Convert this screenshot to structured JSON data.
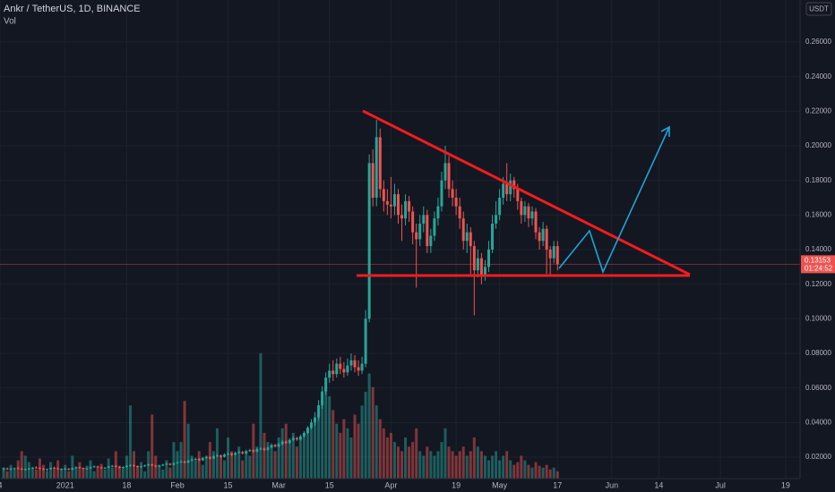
{
  "chart_data": {
    "type": "candlestick",
    "title": "Ankr / TetherUS, 1D, BINANCE",
    "volume_label": "Vol",
    "currency": "USDT",
    "countdown": "01:24:52",
    "up_color": "#26a69a",
    "down_color": "#ef5350",
    "grid": true,
    "ylim": [
      0.0076,
      0.2843
    ],
    "yticks": [
      {
        "value": 0.02,
        "label": "0.02000"
      },
      {
        "value": 0.04,
        "label": "0.04000"
      },
      {
        "value": 0.06,
        "label": "0.06000"
      },
      {
        "value": 0.08,
        "label": "0.08000"
      },
      {
        "value": 0.1,
        "label": "0.10000"
      },
      {
        "value": 0.12,
        "label": "0.12000"
      },
      {
        "value": 0.14,
        "label": "0.14000"
      },
      {
        "value": 0.16,
        "label": "0.16000"
      },
      {
        "value": 0.18,
        "label": "0.18000"
      },
      {
        "value": 0.2,
        "label": "0.20000"
      },
      {
        "value": 0.22,
        "label": "0.22000"
      },
      {
        "value": 0.24,
        "label": "0.24000"
      },
      {
        "value": 0.26,
        "label": "0.26000"
      }
    ],
    "xlim": [
      "2020-12-14",
      "2021-07-23"
    ],
    "xticks": [
      {
        "value": "2020-12-14",
        "label": "4"
      },
      {
        "value": "2021-01-01",
        "label": "2021"
      },
      {
        "value": "2021-01-18",
        "label": "18"
      },
      {
        "value": "2021-02-01",
        "label": "Feb"
      },
      {
        "value": "2021-02-15",
        "label": "15"
      },
      {
        "value": "2021-03-01",
        "label": "Mar"
      },
      {
        "value": "2021-03-15",
        "label": "15"
      },
      {
        "value": "2021-04-01",
        "label": "Apr"
      },
      {
        "value": "2021-04-19",
        "label": "19"
      },
      {
        "value": "2021-05-01",
        "label": "May"
      },
      {
        "value": "2021-05-17",
        "label": "17"
      },
      {
        "value": "2021-06-01",
        "label": "Jun"
      },
      {
        "value": "2021-06-14",
        "label": "14"
      },
      {
        "value": "2021-07-01",
        "label": "Jul"
      },
      {
        "value": "2021-07-19",
        "label": "19"
      }
    ],
    "x": [
      "2020-12-15",
      "2020-12-16",
      "2020-12-17",
      "2020-12-18",
      "2020-12-19",
      "2020-12-20",
      "2020-12-21",
      "2020-12-22",
      "2020-12-23",
      "2020-12-24",
      "2020-12-25",
      "2020-12-26",
      "2020-12-27",
      "2020-12-28",
      "2020-12-29",
      "2020-12-30",
      "2020-12-31",
      "2021-01-01",
      "2021-01-02",
      "2021-01-03",
      "2021-01-04",
      "2021-01-05",
      "2021-01-06",
      "2021-01-07",
      "2021-01-08",
      "2021-01-09",
      "2021-01-10",
      "2021-01-11",
      "2021-01-12",
      "2021-01-13",
      "2021-01-14",
      "2021-01-15",
      "2021-01-16",
      "2021-01-17",
      "2021-01-18",
      "2021-01-19",
      "2021-01-20",
      "2021-01-21",
      "2021-01-22",
      "2021-01-23",
      "2021-01-24",
      "2021-01-25",
      "2021-01-26",
      "2021-01-27",
      "2021-01-28",
      "2021-01-29",
      "2021-01-30",
      "2021-01-31",
      "2021-02-01",
      "2021-02-02",
      "2021-02-03",
      "2021-02-04",
      "2021-02-05",
      "2021-02-06",
      "2021-02-07",
      "2021-02-08",
      "2021-02-09",
      "2021-02-10",
      "2021-02-11",
      "2021-02-12",
      "2021-02-13",
      "2021-02-14",
      "2021-02-15",
      "2021-02-16",
      "2021-02-17",
      "2021-02-18",
      "2021-02-19",
      "2021-02-20",
      "2021-02-21",
      "2021-02-22",
      "2021-02-23",
      "2021-02-24",
      "2021-02-25",
      "2021-02-26",
      "2021-02-27",
      "2021-02-28",
      "2021-03-01",
      "2021-03-02",
      "2021-03-03",
      "2021-03-04",
      "2021-03-05",
      "2021-03-06",
      "2021-03-07",
      "2021-03-08",
      "2021-03-09",
      "2021-03-10",
      "2021-03-11",
      "2021-03-12",
      "2021-03-13",
      "2021-03-14",
      "2021-03-15",
      "2021-03-16",
      "2021-03-17",
      "2021-03-18",
      "2021-03-19",
      "2021-03-20",
      "2021-03-21",
      "2021-03-22",
      "2021-03-23",
      "2021-03-24",
      "2021-03-25",
      "2021-03-26",
      "2021-03-27",
      "2021-03-28",
      "2021-03-29",
      "2021-03-30",
      "2021-03-31",
      "2021-04-01",
      "2021-04-02",
      "2021-04-03",
      "2021-04-04",
      "2021-04-05",
      "2021-04-06",
      "2021-04-07",
      "2021-04-08",
      "2021-04-09",
      "2021-04-10",
      "2021-04-11",
      "2021-04-12",
      "2021-04-13",
      "2021-04-14",
      "2021-04-15",
      "2021-04-16",
      "2021-04-17",
      "2021-04-18",
      "2021-04-19",
      "2021-04-20",
      "2021-04-21",
      "2021-04-22",
      "2021-04-23",
      "2021-04-24",
      "2021-04-25",
      "2021-04-26",
      "2021-04-27",
      "2021-04-28",
      "2021-04-29",
      "2021-04-30",
      "2021-05-01",
      "2021-05-02",
      "2021-05-03",
      "2021-05-04",
      "2021-05-05",
      "2021-05-06",
      "2021-05-07",
      "2021-05-08",
      "2021-05-09",
      "2021-05-10",
      "2021-05-11",
      "2021-05-12",
      "2021-05-13",
      "2021-05-14",
      "2021-05-15",
      "2021-05-16",
      "2021-05-17"
    ],
    "candles": [
      [
        0.013,
        0.014,
        0.012,
        0.0135
      ],
      [
        0.0135,
        0.014,
        0.0125,
        0.013
      ],
      [
        0.013,
        0.0138,
        0.0125,
        0.0132
      ],
      [
        0.0132,
        0.014,
        0.0128,
        0.0136
      ],
      [
        0.0136,
        0.0145,
        0.013,
        0.0133
      ],
      [
        0.0133,
        0.014,
        0.0126,
        0.0129
      ],
      [
        0.0129,
        0.0135,
        0.0122,
        0.0131
      ],
      [
        0.0131,
        0.0138,
        0.0127,
        0.0134
      ],
      [
        0.0134,
        0.0142,
        0.013,
        0.014
      ],
      [
        0.014,
        0.0148,
        0.0134,
        0.0137
      ],
      [
        0.0137,
        0.0142,
        0.013,
        0.0132
      ],
      [
        0.0132,
        0.0138,
        0.0125,
        0.0128
      ],
      [
        0.0128,
        0.0134,
        0.012,
        0.0131
      ],
      [
        0.0131,
        0.014,
        0.0128,
        0.0138
      ],
      [
        0.0138,
        0.0146,
        0.0133,
        0.0135
      ],
      [
        0.0135,
        0.014,
        0.0128,
        0.013
      ],
      [
        0.013,
        0.0136,
        0.0124,
        0.0133
      ],
      [
        0.0133,
        0.0139,
        0.0128,
        0.0133
      ],
      [
        0.0133,
        0.0137,
        0.0123,
        0.0128
      ],
      [
        0.0128,
        0.014,
        0.0124,
        0.0136
      ],
      [
        0.0136,
        0.0147,
        0.0132,
        0.0142
      ],
      [
        0.0142,
        0.0146,
        0.0133,
        0.0138
      ],
      [
        0.0138,
        0.014,
        0.0126,
        0.0131
      ],
      [
        0.0131,
        0.0139,
        0.0127,
        0.0135
      ],
      [
        0.0135,
        0.0146,
        0.0131,
        0.0142
      ],
      [
        0.0142,
        0.0152,
        0.0138,
        0.0147
      ],
      [
        0.0147,
        0.015,
        0.0137,
        0.0141
      ],
      [
        0.0141,
        0.0145,
        0.0131,
        0.0136
      ],
      [
        0.0136,
        0.0143,
        0.0132,
        0.0139
      ],
      [
        0.0139,
        0.015,
        0.0135,
        0.0146
      ],
      [
        0.0146,
        0.0155,
        0.0142,
        0.015
      ],
      [
        0.015,
        0.0154,
        0.014,
        0.0144
      ],
      [
        0.0144,
        0.0148,
        0.0134,
        0.0139
      ],
      [
        0.0139,
        0.0147,
        0.0135,
        0.0143
      ],
      [
        0.0143,
        0.0153,
        0.0139,
        0.0149
      ],
      [
        0.0149,
        0.0159,
        0.0145,
        0.0154
      ],
      [
        0.0154,
        0.0158,
        0.0144,
        0.0148
      ],
      [
        0.0148,
        0.0152,
        0.0138,
        0.0143
      ],
      [
        0.0143,
        0.0151,
        0.0139,
        0.0147
      ],
      [
        0.0147,
        0.0157,
        0.0143,
        0.0152
      ],
      [
        0.0152,
        0.0163,
        0.0148,
        0.0158
      ],
      [
        0.0158,
        0.0162,
        0.0147,
        0.0151
      ],
      [
        0.0151,
        0.0155,
        0.0141,
        0.0146
      ],
      [
        0.0146,
        0.0155,
        0.0142,
        0.0151
      ],
      [
        0.0151,
        0.0162,
        0.0147,
        0.0157
      ],
      [
        0.0157,
        0.0167,
        0.0153,
        0.0162
      ],
      [
        0.0162,
        0.0166,
        0.0151,
        0.0156
      ],
      [
        0.0156,
        0.017,
        0.0152,
        0.0165
      ],
      [
        0.0165,
        0.0176,
        0.016,
        0.017
      ],
      [
        0.017,
        0.0181,
        0.0165,
        0.0175
      ],
      [
        0.0175,
        0.0179,
        0.0163,
        0.0168
      ],
      [
        0.0168,
        0.0186,
        0.0165,
        0.018
      ],
      [
        0.018,
        0.0193,
        0.0175,
        0.0186
      ],
      [
        0.0186,
        0.0197,
        0.018,
        0.019
      ],
      [
        0.019,
        0.0195,
        0.0176,
        0.0182
      ],
      [
        0.0182,
        0.0202,
        0.0178,
        0.0195
      ],
      [
        0.0195,
        0.0208,
        0.019,
        0.02
      ],
      [
        0.02,
        0.0206,
        0.0186,
        0.0192
      ],
      [
        0.0192,
        0.0212,
        0.0188,
        0.0205
      ],
      [
        0.0205,
        0.0218,
        0.02,
        0.021
      ],
      [
        0.021,
        0.0216,
        0.0196,
        0.0202
      ],
      [
        0.0202,
        0.0222,
        0.0198,
        0.0215
      ],
      [
        0.0215,
        0.0228,
        0.021,
        0.022
      ],
      [
        0.022,
        0.0226,
        0.0205,
        0.0212
      ],
      [
        0.0212,
        0.0232,
        0.0207,
        0.0225
      ],
      [
        0.0225,
        0.0238,
        0.022,
        0.023
      ],
      [
        0.023,
        0.0236,
        0.0215,
        0.0222
      ],
      [
        0.0222,
        0.0243,
        0.0217,
        0.0235
      ],
      [
        0.0235,
        0.0248,
        0.023,
        0.024
      ],
      [
        0.024,
        0.0246,
        0.0225,
        0.0232
      ],
      [
        0.0232,
        0.0253,
        0.0227,
        0.0245
      ],
      [
        0.0245,
        0.0258,
        0.024,
        0.025
      ],
      [
        0.025,
        0.0256,
        0.0235,
        0.0242
      ],
      [
        0.0242,
        0.0263,
        0.0237,
        0.0255
      ],
      [
        0.0255,
        0.0279,
        0.025,
        0.027
      ],
      [
        0.027,
        0.0276,
        0.0255,
        0.0262
      ],
      [
        0.0262,
        0.0284,
        0.0255,
        0.0275
      ],
      [
        0.0275,
        0.0299,
        0.0268,
        0.029
      ],
      [
        0.029,
        0.0297,
        0.0274,
        0.0282
      ],
      [
        0.0282,
        0.031,
        0.0276,
        0.03
      ],
      [
        0.03,
        0.032,
        0.0293,
        0.031
      ],
      [
        0.031,
        0.0318,
        0.0294,
        0.0302
      ],
      [
        0.0302,
        0.033,
        0.0296,
        0.032
      ],
      [
        0.032,
        0.035,
        0.0313,
        0.034
      ],
      [
        0.034,
        0.038,
        0.0332,
        0.037
      ],
      [
        0.037,
        0.042,
        0.036,
        0.04
      ],
      [
        0.04,
        0.046,
        0.038,
        0.043
      ],
      [
        0.043,
        0.053,
        0.041,
        0.05
      ],
      [
        0.05,
        0.061,
        0.048,
        0.058
      ],
      [
        0.058,
        0.069,
        0.056,
        0.066
      ],
      [
        0.066,
        0.074,
        0.063,
        0.07
      ],
      [
        0.07,
        0.076,
        0.064,
        0.068
      ],
      [
        0.068,
        0.077,
        0.066,
        0.074
      ],
      [
        0.074,
        0.078,
        0.068,
        0.071
      ],
      [
        0.071,
        0.075,
        0.066,
        0.069
      ],
      [
        0.069,
        0.077,
        0.067,
        0.073
      ],
      [
        0.073,
        0.08,
        0.07,
        0.076
      ],
      [
        0.076,
        0.079,
        0.069,
        0.072
      ],
      [
        0.072,
        0.076,
        0.067,
        0.07
      ],
      [
        0.07,
        0.078,
        0.068,
        0.074
      ],
      [
        0.074,
        0.105,
        0.072,
        0.1
      ],
      [
        0.1,
        0.195,
        0.098,
        0.19
      ],
      [
        0.19,
        0.198,
        0.165,
        0.17
      ],
      [
        0.17,
        0.215,
        0.165,
        0.205
      ],
      [
        0.205,
        0.21,
        0.17,
        0.175
      ],
      [
        0.175,
        0.18,
        0.162,
        0.168
      ],
      [
        0.168,
        0.175,
        0.16,
        0.166
      ],
      [
        0.166,
        0.182,
        0.158,
        0.165
      ],
      [
        0.165,
        0.178,
        0.16,
        0.172
      ],
      [
        0.172,
        0.175,
        0.155,
        0.16
      ],
      [
        0.16,
        0.166,
        0.145,
        0.158
      ],
      [
        0.158,
        0.172,
        0.154,
        0.168
      ],
      [
        0.168,
        0.171,
        0.156,
        0.162
      ],
      [
        0.162,
        0.165,
        0.143,
        0.15
      ],
      [
        0.15,
        0.155,
        0.118,
        0.146
      ],
      [
        0.146,
        0.16,
        0.142,
        0.155
      ],
      [
        0.155,
        0.165,
        0.15,
        0.16
      ],
      [
        0.16,
        0.163,
        0.138,
        0.142
      ],
      [
        0.142,
        0.152,
        0.138,
        0.148
      ],
      [
        0.148,
        0.162,
        0.145,
        0.158
      ],
      [
        0.158,
        0.17,
        0.154,
        0.165
      ],
      [
        0.165,
        0.185,
        0.162,
        0.18
      ],
      [
        0.18,
        0.2,
        0.175,
        0.19
      ],
      [
        0.19,
        0.194,
        0.17,
        0.175
      ],
      [
        0.175,
        0.18,
        0.165,
        0.17
      ],
      [
        0.17,
        0.175,
        0.16,
        0.165
      ],
      [
        0.165,
        0.17,
        0.152,
        0.158
      ],
      [
        0.158,
        0.162,
        0.14,
        0.145
      ],
      [
        0.145,
        0.155,
        0.138,
        0.15
      ],
      [
        0.15,
        0.153,
        0.125,
        0.142
      ],
      [
        0.142,
        0.145,
        0.102,
        0.128
      ],
      [
        0.128,
        0.14,
        0.124,
        0.135
      ],
      [
        0.135,
        0.138,
        0.12,
        0.125
      ],
      [
        0.125,
        0.134,
        0.122,
        0.13
      ],
      [
        0.13,
        0.145,
        0.127,
        0.14
      ],
      [
        0.14,
        0.16,
        0.138,
        0.155
      ],
      [
        0.155,
        0.168,
        0.152,
        0.16
      ],
      [
        0.16,
        0.175,
        0.157,
        0.17
      ],
      [
        0.17,
        0.182,
        0.166,
        0.178
      ],
      [
        0.178,
        0.19,
        0.168,
        0.172
      ],
      [
        0.172,
        0.184,
        0.168,
        0.18
      ],
      [
        0.18,
        0.182,
        0.17,
        0.175
      ],
      [
        0.175,
        0.178,
        0.163,
        0.168
      ],
      [
        0.168,
        0.17,
        0.155,
        0.16
      ],
      [
        0.16,
        0.168,
        0.156,
        0.165
      ],
      [
        0.165,
        0.167,
        0.153,
        0.158
      ],
      [
        0.158,
        0.165,
        0.154,
        0.162
      ],
      [
        0.162,
        0.164,
        0.146,
        0.15
      ],
      [
        0.15,
        0.153,
        0.14,
        0.145
      ],
      [
        0.145,
        0.156,
        0.142,
        0.152
      ],
      [
        0.152,
        0.154,
        0.126,
        0.14
      ],
      [
        0.14,
        0.142,
        0.125,
        0.135
      ],
      [
        0.135,
        0.145,
        0.132,
        0.142
      ],
      [
        0.142,
        0.145,
        0.128,
        0.13153
      ]
    ],
    "volume": [
      12,
      8,
      15,
      10,
      20,
      30,
      25,
      18,
      12,
      10,
      22,
      15,
      8,
      18,
      12,
      20,
      10,
      15,
      8,
      25,
      12,
      18,
      10,
      14,
      20,
      8,
      12,
      16,
      10,
      22,
      12,
      30,
      14,
      12,
      25,
      80,
      30,
      14,
      18,
      8,
      30,
      70,
      25,
      15,
      10,
      20,
      12,
      40,
      30,
      40,
      85,
      60,
      25,
      20,
      30,
      15,
      25,
      40,
      30,
      55,
      25,
      20,
      45,
      30,
      25,
      35,
      20,
      30,
      25,
      60,
      35,
      137,
      50,
      40,
      35,
      30,
      45,
      55,
      60,
      40,
      50,
      35,
      45,
      50,
      55,
      60,
      65,
      70,
      85,
      100,
      90,
      75,
      60,
      50,
      65,
      55,
      45,
      70,
      60,
      80,
      95,
      115,
      100,
      80,
      65,
      55,
      45,
      50,
      40,
      35,
      30,
      45,
      35,
      40,
      55,
      30,
      25,
      35,
      30,
      25,
      30,
      40,
      55,
      35,
      30,
      25,
      30,
      35,
      25,
      30,
      45,
      35,
      30,
      25,
      20,
      25,
      30,
      20,
      25,
      30,
      20,
      15,
      18,
      25,
      20,
      15,
      12,
      18,
      14,
      12,
      15,
      10,
      12,
      8
    ]
  }
}
